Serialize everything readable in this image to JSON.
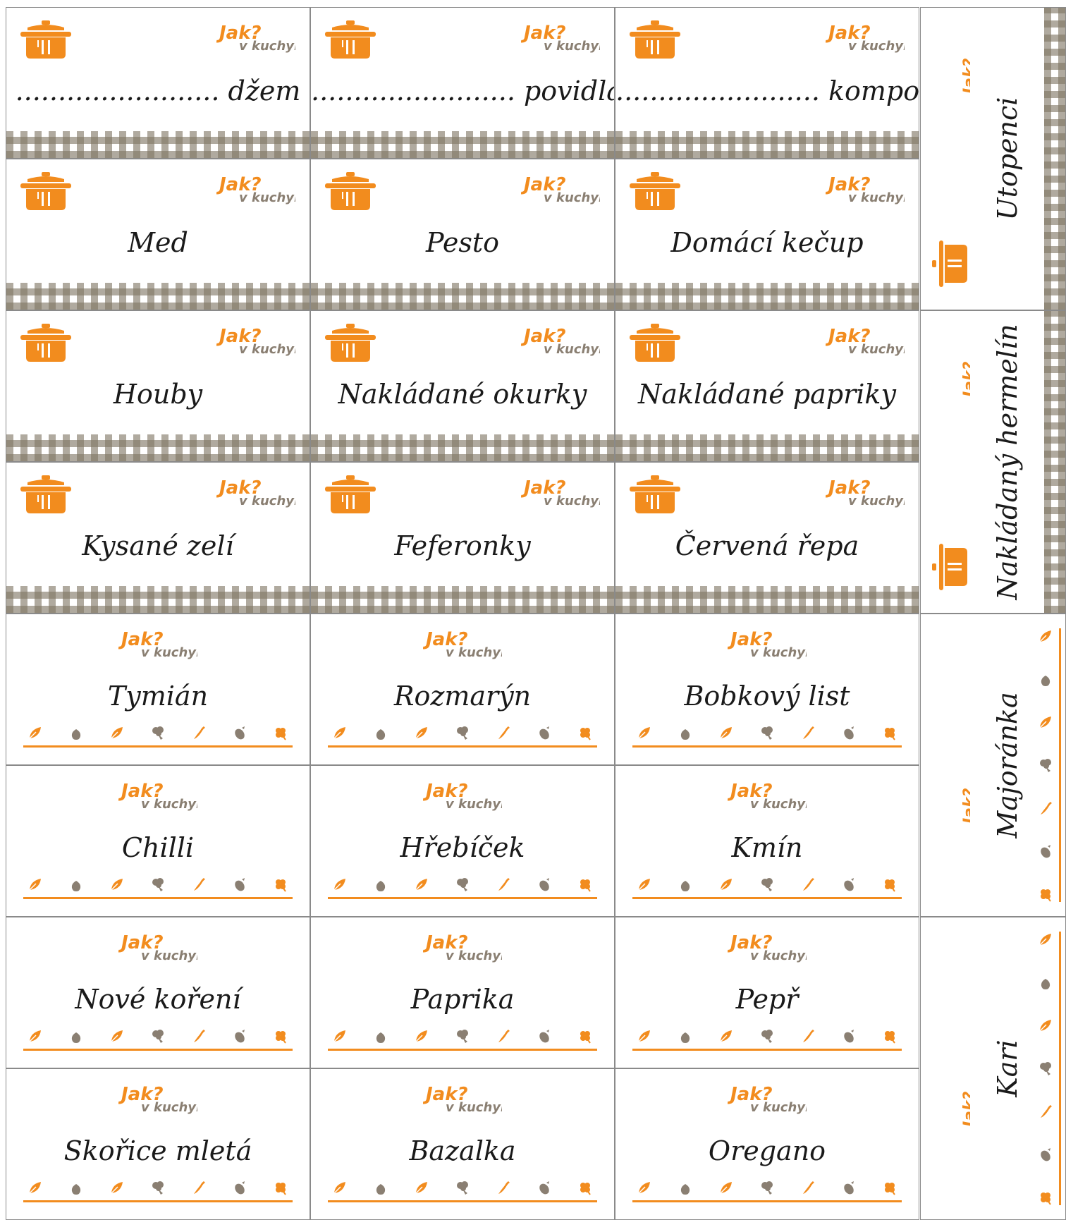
{
  "colors": {
    "accent": "#f28c1e",
    "gingham": "#807664",
    "brand_gray": "#8a7f72",
    "text": "#1a1a1a"
  },
  "brand": {
    "line1": "Jak?",
    "line2": "v kuchyni"
  },
  "jar_labels": [
    {
      "name": "........................ džem"
    },
    {
      "name": "........................ povidla"
    },
    {
      "name": "........................ kompot"
    },
    {
      "name": "Med"
    },
    {
      "name": "Pesto"
    },
    {
      "name": "Domácí kečup"
    },
    {
      "name": "Houby"
    },
    {
      "name": "Nakládané okurky"
    },
    {
      "name": "Nakládané papriky"
    },
    {
      "name": "Kysané zelí"
    },
    {
      "name": "Feferonky"
    },
    {
      "name": "Červená řepa"
    }
  ],
  "spice_labels": [
    {
      "name": "Tymián"
    },
    {
      "name": "Rozmarýn"
    },
    {
      "name": "Bobkový list"
    },
    {
      "name": "Chilli"
    },
    {
      "name": "Hřebíček"
    },
    {
      "name": "Kmín"
    },
    {
      "name": "Nové koření"
    },
    {
      "name": "Paprika"
    },
    {
      "name": "Pepř"
    },
    {
      "name": "Skořice mletá"
    },
    {
      "name": "Bazalka"
    },
    {
      "name": "Oregano"
    }
  ],
  "side_labels": [
    {
      "name": "Utopenci",
      "kind": "jar"
    },
    {
      "name": "Nakládaný hermelín",
      "kind": "jar"
    },
    {
      "name": "Majoránka",
      "kind": "spice"
    },
    {
      "name": "Kari",
      "kind": "spice"
    }
  ],
  "icons": {
    "pot": "cooking-pot-icon",
    "veg_row": [
      "leaf-icon",
      "garlic-icon",
      "leaf-icon",
      "broccoli-icon",
      "chili-icon",
      "eggplant-icon",
      "clover-icon"
    ]
  }
}
